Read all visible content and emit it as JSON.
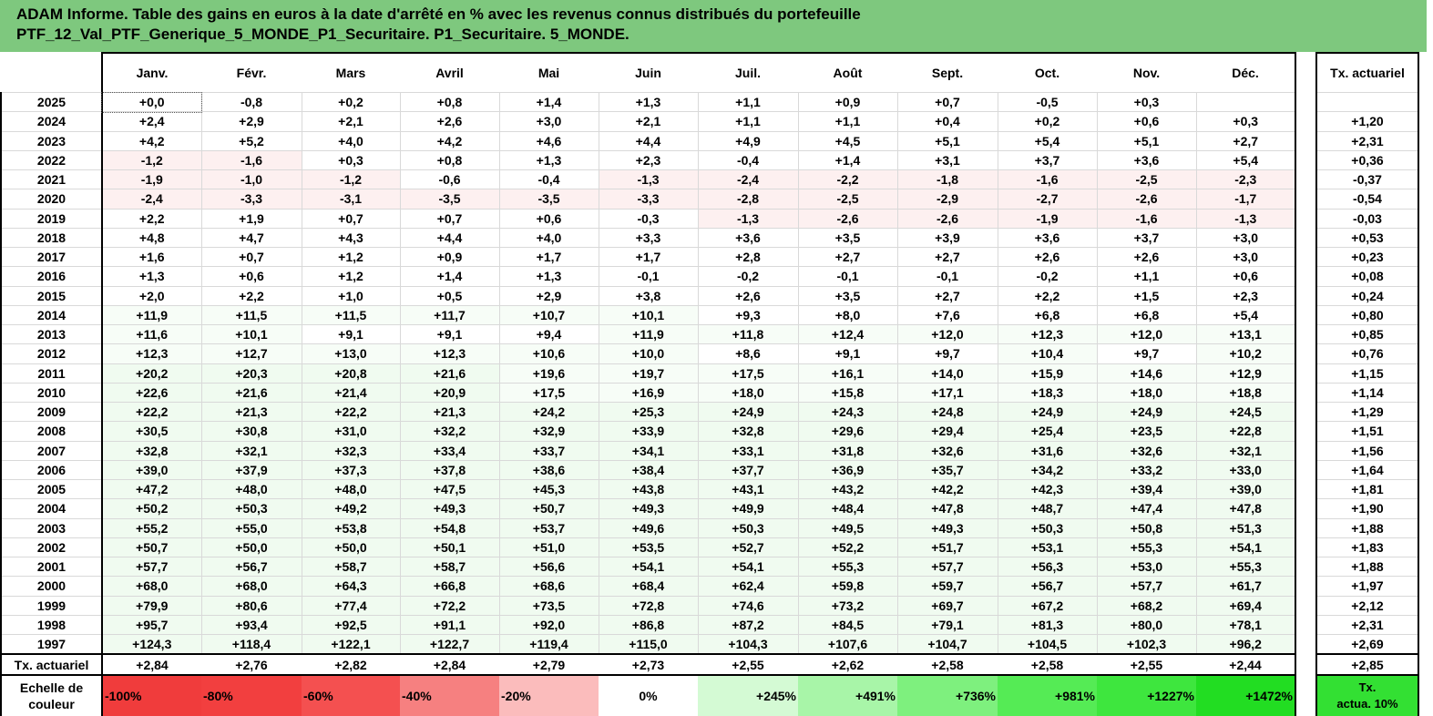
{
  "title": {
    "line1": "ADAM Informe. Table des gains en euros à la date d'arrêté en % avec les revenus connus distribués du portefeuille",
    "line2": "PTF_12_Val_PTF_Generique_5_MONDE_P1_Securitaire. P1_Securitaire. 5_MONDE."
  },
  "months": [
    "Janv.",
    "Févr.",
    "Mars",
    "Avril",
    "Mai",
    "Juin",
    "Juil.",
    "Août",
    "Sept.",
    "Oct.",
    "Nov.",
    "Déc."
  ],
  "actuarial_header": "Tx. actuariel",
  "rows": [
    {
      "year": "2025",
      "values": [
        "+0,0",
        "-0,8",
        "+0,2",
        "+0,8",
        "+1,4",
        "+1,3",
        "+1,1",
        "+0,9",
        "+0,7",
        "-0,5",
        "+0,3",
        ""
      ],
      "act": ""
    },
    {
      "year": "2024",
      "values": [
        "+2,4",
        "+2,9",
        "+2,1",
        "+2,6",
        "+3,0",
        "+2,1",
        "+1,1",
        "+1,1",
        "+0,4",
        "+0,2",
        "+0,6",
        "+0,3"
      ],
      "act": "+1,20"
    },
    {
      "year": "2023",
      "values": [
        "+4,2",
        "+5,2",
        "+4,0",
        "+4,2",
        "+4,6",
        "+4,4",
        "+4,9",
        "+4,5",
        "+5,1",
        "+5,4",
        "+5,1",
        "+2,7"
      ],
      "act": "+2,31"
    },
    {
      "year": "2022",
      "values": [
        "-1,2",
        "-1,6",
        "+0,3",
        "+0,8",
        "+1,3",
        "+2,3",
        "-0,4",
        "+1,4",
        "+3,1",
        "+3,7",
        "+3,6",
        "+5,4"
      ],
      "act": "+0,36"
    },
    {
      "year": "2021",
      "values": [
        "-1,9",
        "-1,0",
        "-1,2",
        "-0,6",
        "-0,4",
        "-1,3",
        "-2,4",
        "-2,2",
        "-1,8",
        "-1,6",
        "-2,5",
        "-2,3"
      ],
      "act": "-0,37"
    },
    {
      "year": "2020",
      "values": [
        "-2,4",
        "-3,3",
        "-3,1",
        "-3,5",
        "-3,5",
        "-3,3",
        "-2,8",
        "-2,5",
        "-2,9",
        "-2,7",
        "-2,6",
        "-1,7"
      ],
      "act": "-0,54"
    },
    {
      "year": "2019",
      "values": [
        "+2,2",
        "+1,9",
        "+0,7",
        "+0,7",
        "+0,6",
        "-0,3",
        "-1,3",
        "-2,6",
        "-2,6",
        "-1,9",
        "-1,6",
        "-1,3"
      ],
      "act": "-0,03"
    },
    {
      "year": "2018",
      "values": [
        "+4,8",
        "+4,7",
        "+4,3",
        "+4,4",
        "+4,0",
        "+3,3",
        "+3,6",
        "+3,5",
        "+3,9",
        "+3,6",
        "+3,7",
        "+3,0"
      ],
      "act": "+0,53"
    },
    {
      "year": "2017",
      "values": [
        "+1,6",
        "+0,7",
        "+1,2",
        "+0,9",
        "+1,7",
        "+1,7",
        "+2,8",
        "+2,7",
        "+2,7",
        "+2,6",
        "+2,6",
        "+3,0"
      ],
      "act": "+0,23"
    },
    {
      "year": "2016",
      "values": [
        "+1,3",
        "+0,6",
        "+1,2",
        "+1,4",
        "+1,3",
        "-0,1",
        "-0,2",
        "-0,1",
        "-0,1",
        "-0,2",
        "+1,1",
        "+0,6"
      ],
      "act": "+0,08"
    },
    {
      "year": "2015",
      "values": [
        "+2,0",
        "+2,2",
        "+1,0",
        "+0,5",
        "+2,9",
        "+3,8",
        "+2,6",
        "+3,5",
        "+2,7",
        "+2,2",
        "+1,5",
        "+2,3"
      ],
      "act": "+0,24"
    },
    {
      "year": "2014",
      "values": [
        "+11,9",
        "+11,5",
        "+11,5",
        "+11,7",
        "+10,7",
        "+10,1",
        "+9,3",
        "+8,0",
        "+7,6",
        "+6,8",
        "+6,8",
        "+5,4"
      ],
      "act": "+0,80"
    },
    {
      "year": "2013",
      "values": [
        "+11,6",
        "+10,1",
        "+9,1",
        "+9,1",
        "+9,4",
        "+11,9",
        "+11,8",
        "+12,4",
        "+12,0",
        "+12,3",
        "+12,0",
        "+13,1"
      ],
      "act": "+0,85"
    },
    {
      "year": "2012",
      "values": [
        "+12,3",
        "+12,7",
        "+13,0",
        "+12,3",
        "+10,6",
        "+10,0",
        "+8,6",
        "+9,1",
        "+9,7",
        "+10,4",
        "+9,7",
        "+10,2"
      ],
      "act": "+0,76"
    },
    {
      "year": "2011",
      "values": [
        "+20,2",
        "+20,3",
        "+20,8",
        "+21,6",
        "+19,6",
        "+19,7",
        "+17,5",
        "+16,1",
        "+14,0",
        "+15,9",
        "+14,6",
        "+12,9"
      ],
      "act": "+1,15"
    },
    {
      "year": "2010",
      "values": [
        "+22,6",
        "+21,6",
        "+21,4",
        "+20,9",
        "+17,5",
        "+16,9",
        "+18,0",
        "+15,8",
        "+17,1",
        "+18,3",
        "+18,0",
        "+18,8"
      ],
      "act": "+1,14"
    },
    {
      "year": "2009",
      "values": [
        "+22,2",
        "+21,3",
        "+22,2",
        "+21,3",
        "+24,2",
        "+25,3",
        "+24,9",
        "+24,3",
        "+24,8",
        "+24,9",
        "+24,9",
        "+24,5"
      ],
      "act": "+1,29"
    },
    {
      "year": "2008",
      "values": [
        "+30,5",
        "+30,8",
        "+31,0",
        "+32,2",
        "+32,9",
        "+33,9",
        "+32,8",
        "+29,6",
        "+29,4",
        "+25,4",
        "+23,5",
        "+22,8"
      ],
      "act": "+1,51"
    },
    {
      "year": "2007",
      "values": [
        "+32,8",
        "+32,1",
        "+32,3",
        "+33,4",
        "+33,7",
        "+34,1",
        "+33,1",
        "+31,8",
        "+32,6",
        "+31,6",
        "+32,6",
        "+32,1"
      ],
      "act": "+1,56"
    },
    {
      "year": "2006",
      "values": [
        "+39,0",
        "+37,9",
        "+37,3",
        "+37,8",
        "+38,6",
        "+38,4",
        "+37,7",
        "+36,9",
        "+35,7",
        "+34,2",
        "+33,2",
        "+33,0"
      ],
      "act": "+1,64"
    },
    {
      "year": "2005",
      "values": [
        "+47,2",
        "+48,0",
        "+48,0",
        "+47,5",
        "+45,3",
        "+43,8",
        "+43,1",
        "+43,2",
        "+42,2",
        "+42,3",
        "+39,4",
        "+39,0"
      ],
      "act": "+1,81"
    },
    {
      "year": "2004",
      "values": [
        "+50,2",
        "+50,3",
        "+49,2",
        "+49,3",
        "+50,7",
        "+49,3",
        "+49,9",
        "+48,4",
        "+47,8",
        "+48,7",
        "+47,4",
        "+47,8"
      ],
      "act": "+1,90"
    },
    {
      "year": "2003",
      "values": [
        "+55,2",
        "+55,0",
        "+53,8",
        "+54,8",
        "+53,7",
        "+49,6",
        "+50,3",
        "+49,5",
        "+49,3",
        "+50,3",
        "+50,8",
        "+51,3"
      ],
      "act": "+1,88"
    },
    {
      "year": "2002",
      "values": [
        "+50,7",
        "+50,0",
        "+50,0",
        "+50,1",
        "+51,0",
        "+53,5",
        "+52,7",
        "+52,2",
        "+51,7",
        "+53,1",
        "+55,3",
        "+54,1"
      ],
      "act": "+1,83"
    },
    {
      "year": "2001",
      "values": [
        "+57,7",
        "+56,7",
        "+58,7",
        "+58,7",
        "+56,6",
        "+54,1",
        "+54,1",
        "+55,3",
        "+57,7",
        "+56,3",
        "+53,0",
        "+55,3"
      ],
      "act": "+1,88"
    },
    {
      "year": "2000",
      "values": [
        "+68,0",
        "+68,0",
        "+64,3",
        "+66,8",
        "+68,6",
        "+68,4",
        "+62,4",
        "+59,8",
        "+59,7",
        "+56,7",
        "+57,7",
        "+61,7"
      ],
      "act": "+1,97"
    },
    {
      "year": "1999",
      "values": [
        "+79,9",
        "+80,6",
        "+77,4",
        "+72,2",
        "+73,5",
        "+72,8",
        "+74,6",
        "+73,2",
        "+69,7",
        "+67,2",
        "+68,2",
        "+69,4"
      ],
      "act": "+2,12"
    },
    {
      "year": "1998",
      "values": [
        "+95,7",
        "+93,4",
        "+92,5",
        "+91,1",
        "+92,0",
        "+86,8",
        "+87,2",
        "+84,5",
        "+79,1",
        "+81,3",
        "+80,0",
        "+78,1"
      ],
      "act": "+2,31"
    },
    {
      "year": "1997",
      "values": [
        "+124,3",
        "+118,4",
        "+122,1",
        "+122,7",
        "+119,4",
        "+115,0",
        "+104,3",
        "+107,6",
        "+104,7",
        "+104,5",
        "+102,3",
        "+96,2"
      ],
      "act": "+2,69"
    }
  ],
  "tx_row": {
    "label": "Tx. actuariel",
    "values": [
      "+2,84",
      "+2,76",
      "+2,82",
      "+2,84",
      "+2,79",
      "+2,73",
      "+2,55",
      "+2,62",
      "+2,58",
      "+2,58",
      "+2,55",
      "+2,44"
    ],
    "act": "+2,85"
  },
  "scale": {
    "label_line1": "Echelle de",
    "label_line2": "couleur",
    "items": [
      {
        "text": "-100%",
        "color": "#f03c3c",
        "align": "left"
      },
      {
        "text": "-80%",
        "color": "#f23f3f",
        "align": "left"
      },
      {
        "text": "-60%",
        "color": "#f45050",
        "align": "left"
      },
      {
        "text": "-40%",
        "color": "#f68080",
        "align": "left"
      },
      {
        "text": "-20%",
        "color": "#fbbcbc",
        "align": "left"
      },
      {
        "text": "0%",
        "color": "#ffffff",
        "align": "center"
      },
      {
        "text": "+245%",
        "color": "#d4fad4",
        "align": "right"
      },
      {
        "text": "+491%",
        "color": "#a8f5a8",
        "align": "right"
      },
      {
        "text": "+736%",
        "color": "#7ef07e",
        "align": "right"
      },
      {
        "text": "+981%",
        "color": "#55eb55",
        "align": "right"
      },
      {
        "text": "+1227%",
        "color": "#3ee63e",
        "align": "right"
      },
      {
        "text": "+1472%",
        "color": "#22dd22",
        "align": "right"
      }
    ],
    "act_line1": "Tx.",
    "act_line2": "actua. 10%",
    "act_color": "#33e033"
  },
  "colors": {
    "title_bg": "#7ec87e",
    "negative_tint": "#fdf0f0",
    "positive_tint": "#f0fbf0",
    "positive_tint_strong": "#e3f8e3"
  }
}
